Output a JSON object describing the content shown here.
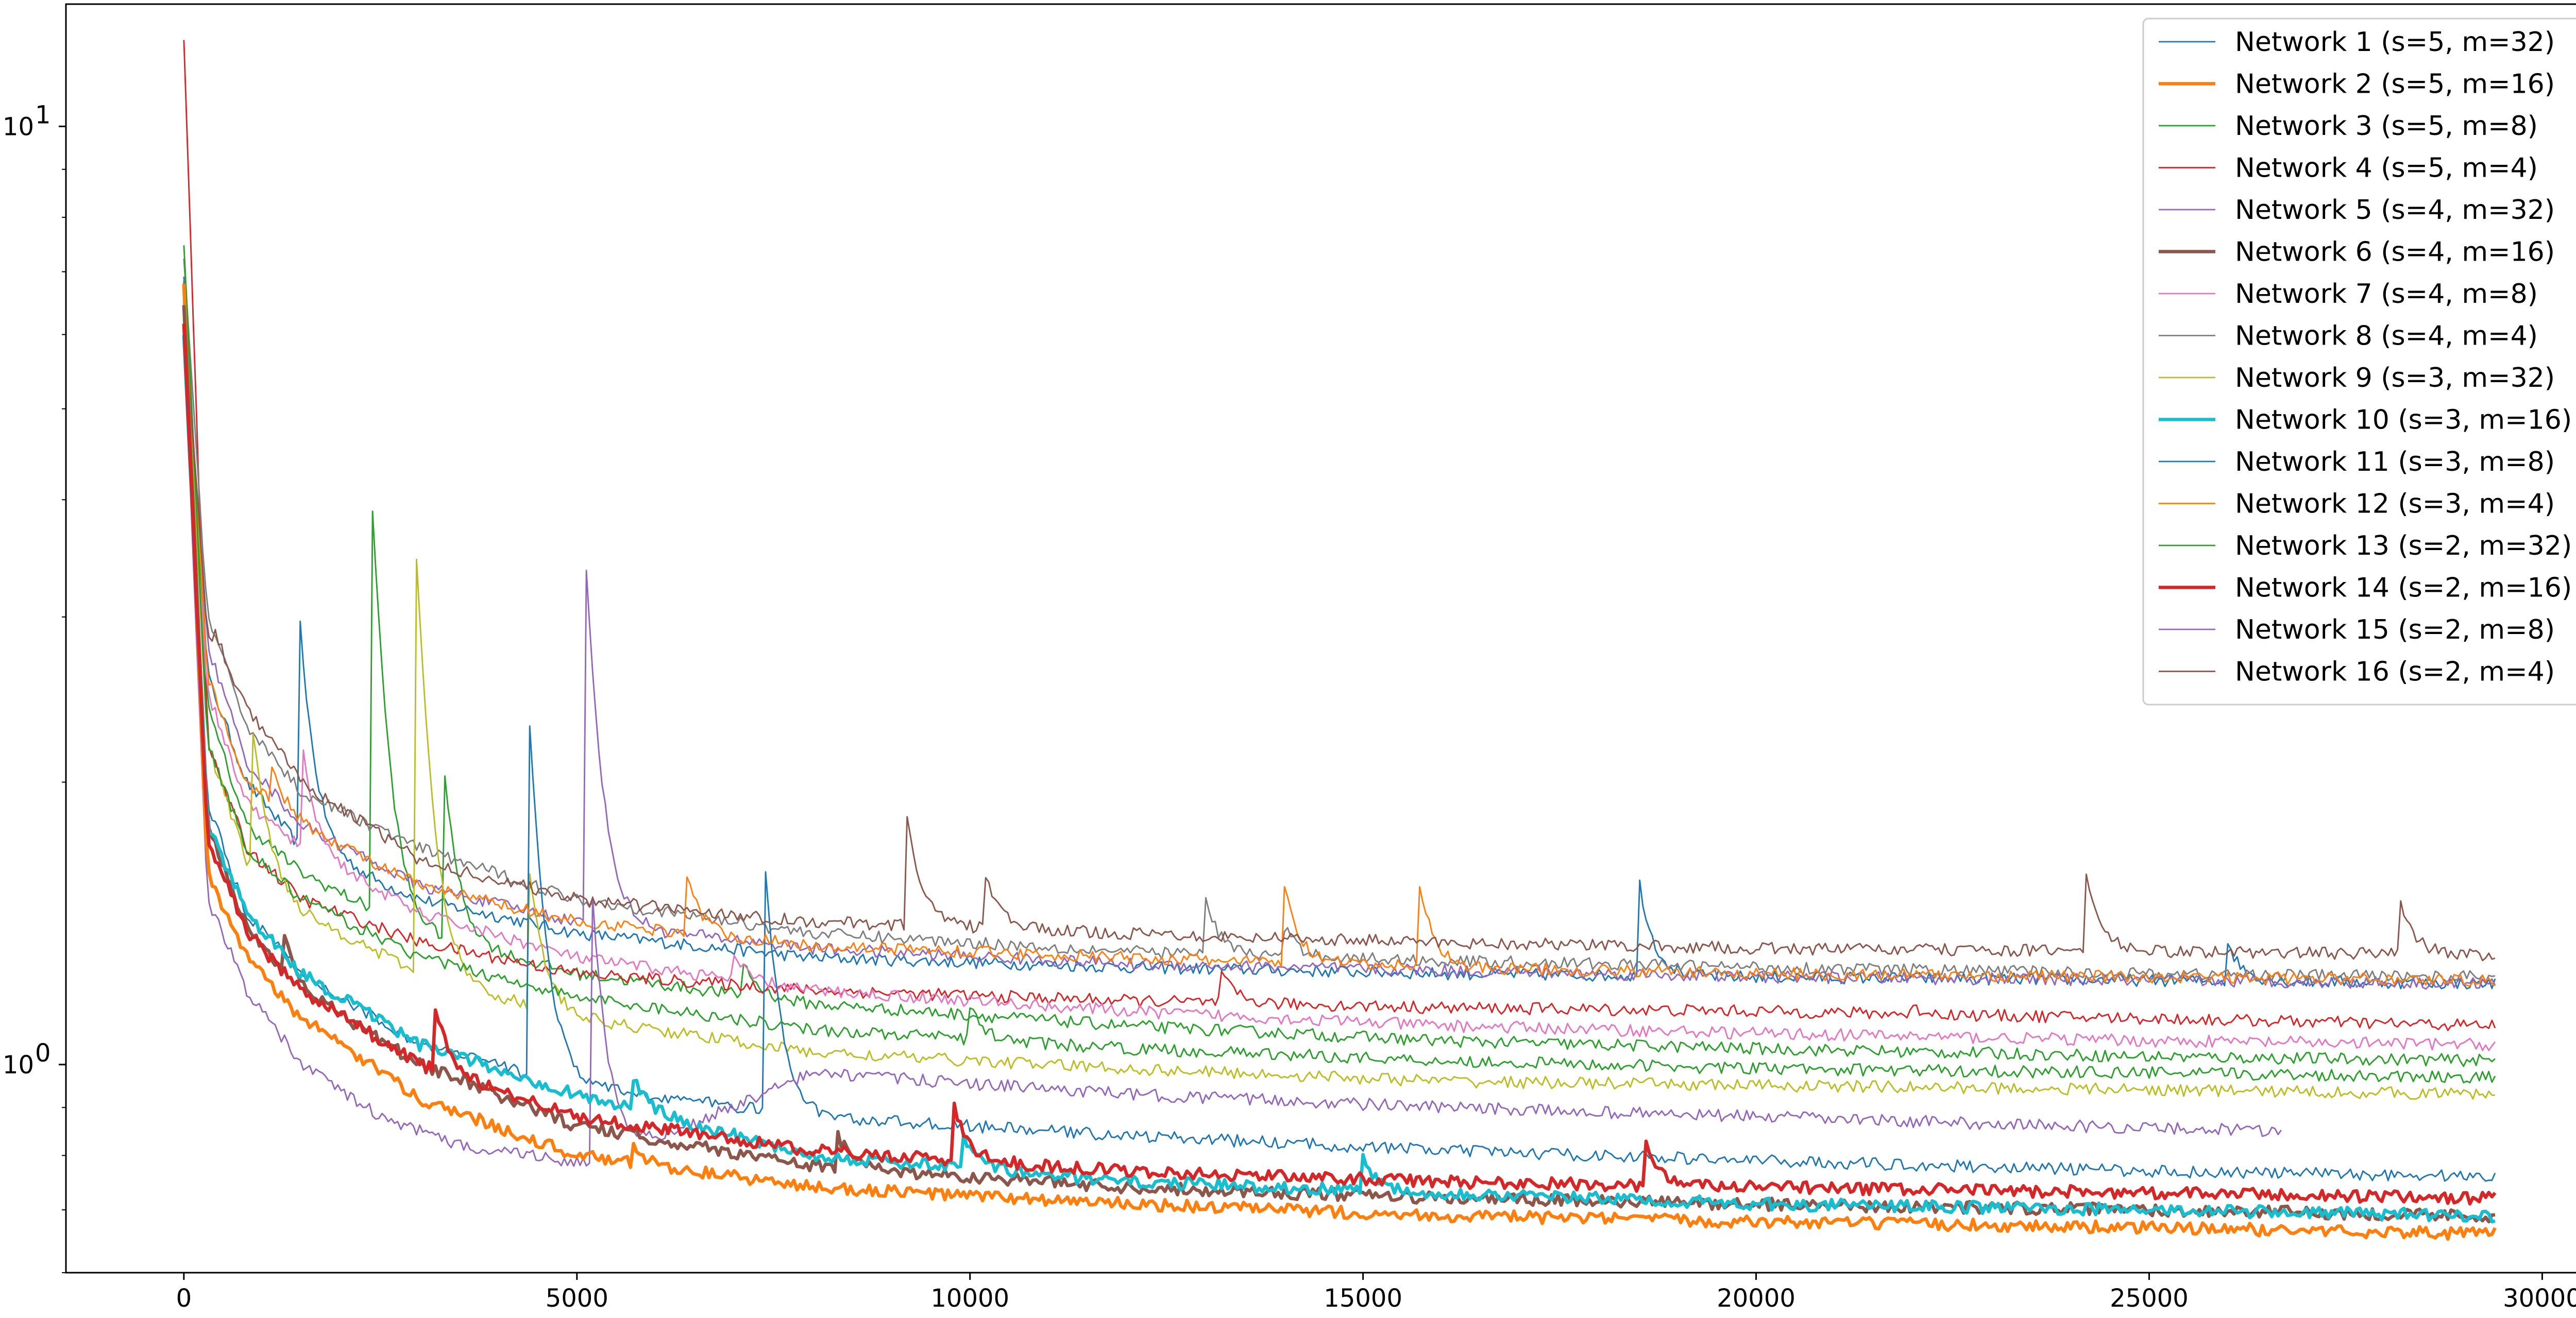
{
  "chart_data": {
    "type": "line",
    "title": "",
    "xlabel": "",
    "ylabel": "",
    "xlim": [
      -1500,
      31000
    ],
    "ylim": [
      0.6,
      13.5
    ],
    "yscale": "log",
    "grid": false,
    "legend_position": "top-right",
    "x_ticks": [
      0,
      5000,
      10000,
      15000,
      20000,
      25000,
      30000
    ],
    "y_ticks": [
      {
        "value": 1,
        "label": "10",
        "exponent": "0"
      },
      {
        "value": 10,
        "label": "10",
        "exponent": "1"
      }
    ],
    "series": [
      {
        "name": "Network 1 (s=5, m=32)",
        "color": "#1f77b4",
        "lw": 1.3,
        "start": 7.0,
        "spikes": [
          [
            1450,
            3.2
          ],
          [
            18500,
            1.6
          ],
          [
            26000,
            1.35
          ]
        ],
        "x": [
          0,
          300,
          800,
          1500,
          3000,
          5000,
          8000,
          12000,
          16000,
          20000,
          25000,
          29400
        ],
        "y": [
          7.0,
          2.6,
          2.0,
          1.7,
          1.5,
          1.38,
          1.3,
          1.27,
          1.25,
          1.24,
          1.23,
          1.22
        ]
      },
      {
        "name": "Network 2 (s=5, m=16)",
        "color": "#ff7f0e",
        "lw": 3.0,
        "start": 6.8,
        "spikes": [
          [
            5700,
            0.82
          ]
        ],
        "x": [
          0,
          300,
          800,
          1500,
          3000,
          5000,
          8000,
          12000,
          16000,
          20000,
          25000,
          29400
        ],
        "y": [
          6.8,
          1.6,
          1.3,
          1.12,
          0.92,
          0.8,
          0.74,
          0.71,
          0.69,
          0.68,
          0.67,
          0.66
        ]
      },
      {
        "name": "Network 3 (s=5, m=8)",
        "color": "#2ca02c",
        "lw": 1.3,
        "start": 6.8,
        "spikes": [
          [
            2400,
            3.9
          ],
          [
            3300,
            2.1
          ],
          [
            7100,
            1.3
          ]
        ],
        "x": [
          0,
          300,
          800,
          1500,
          3000,
          5000,
          8000,
          12000,
          16000,
          20000,
          25000,
          29400
        ],
        "y": [
          6.8,
          2.4,
          1.8,
          1.6,
          1.38,
          1.25,
          1.16,
          1.1,
          1.06,
          1.04,
          1.02,
          1.01
        ]
      },
      {
        "name": "Network 4 (s=5, m=4)",
        "color": "#d62728",
        "lw": 1.3,
        "start": 12.5,
        "spikes": [
          [
            13200,
            1.25
          ],
          [
            22000,
            1.15
          ]
        ],
        "x": [
          0,
          300,
          800,
          1500,
          3000,
          5000,
          8000,
          12000,
          16000,
          20000,
          25000,
          29400
        ],
        "y": [
          12.5,
          2.2,
          1.7,
          1.5,
          1.35,
          1.25,
          1.2,
          1.17,
          1.15,
          1.14,
          1.12,
          1.1
        ]
      },
      {
        "name": "Network 5 (s=4, m=32)",
        "color": "#9467bd",
        "lw": 1.3,
        "start": 6.5,
        "spikes": [
          [
            5100,
            3.6
          ],
          [
            11100,
            1.1
          ]
        ],
        "x": [
          0,
          300,
          800,
          1500,
          3000,
          5000,
          8000,
          12000,
          16000,
          20000,
          25000,
          29400
        ],
        "y": [
          6.5,
          2.8,
          2.1,
          1.8,
          1.55,
          1.42,
          1.33,
          1.28,
          1.26,
          1.24,
          1.23,
          1.22
        ]
      },
      {
        "name": "Network 6 (s=4, m=16)",
        "color": "#8c564b",
        "lw": 3.0,
        "start": 6.5,
        "spikes": [
          [
            1250,
            1.4
          ],
          [
            8300,
            0.85
          ]
        ],
        "x": [
          0,
          300,
          800,
          1500,
          3000,
          5000,
          8000,
          12000,
          16000,
          20000,
          25000,
          29400
        ],
        "y": [
          6.5,
          1.8,
          1.4,
          1.2,
          1.0,
          0.86,
          0.78,
          0.74,
          0.72,
          0.71,
          0.7,
          0.69
        ]
      },
      {
        "name": "Network 7 (s=4, m=8)",
        "color": "#e377c2",
        "lw": 1.3,
        "start": 6.0,
        "spikes": [
          [
            1500,
            2.2
          ],
          [
            7000,
            1.3
          ]
        ],
        "x": [
          0,
          300,
          800,
          1500,
          3000,
          5000,
          8000,
          12000,
          16000,
          20000,
          25000,
          29400
        ],
        "y": [
          6.0,
          2.5,
          1.9,
          1.7,
          1.45,
          1.3,
          1.2,
          1.14,
          1.1,
          1.08,
          1.06,
          1.05
        ]
      },
      {
        "name": "Network 8 (s=4, m=4)",
        "color": "#7f7f7f",
        "lw": 1.3,
        "start": 7.2,
        "spikes": [
          [
            13000,
            1.5
          ],
          [
            14000,
            1.4
          ]
        ],
        "x": [
          0,
          300,
          800,
          1500,
          3000,
          5000,
          8000,
          12000,
          16000,
          20000,
          25000,
          29400
        ],
        "y": [
          7.2,
          3.0,
          2.3,
          1.95,
          1.7,
          1.5,
          1.38,
          1.32,
          1.29,
          1.27,
          1.25,
          1.24
        ]
      },
      {
        "name": "Network 9 (s=3, m=32)",
        "color": "#bcbd22",
        "lw": 1.3,
        "start": 6.5,
        "spikes": [
          [
            850,
            2.4
          ],
          [
            2950,
            3.6
          ],
          [
            4400,
            1.6
          ]
        ],
        "x": [
          0,
          300,
          800,
          1500,
          3000,
          5000,
          8000,
          12000,
          16000,
          20000,
          25000,
          29400
        ],
        "y": [
          6.5,
          2.2,
          1.65,
          1.45,
          1.25,
          1.12,
          1.03,
          0.99,
          0.96,
          0.95,
          0.94,
          0.93
        ]
      },
      {
        "name": "Network 10 (s=3, m=16)",
        "color": "#17becf",
        "lw": 3.0,
        "start": 6.0,
        "spikes": [
          [
            5700,
            0.98
          ],
          [
            9900,
            0.85
          ],
          [
            15000,
            0.8
          ]
        ],
        "x": [
          0,
          300,
          800,
          1500,
          3000,
          5000,
          8000,
          12000,
          16000,
          20000,
          25000,
          29400
        ],
        "y": [
          6.0,
          1.8,
          1.45,
          1.25,
          1.05,
          0.93,
          0.8,
          0.75,
          0.73,
          0.71,
          0.7,
          0.69
        ]
      },
      {
        "name": "Network 11 (s=3, m=8)",
        "color": "#1f77b4",
        "lw": 1.3,
        "start": 6.8,
        "spikes": [
          [
            4400,
            2.3
          ],
          [
            7400,
            1.6
          ]
        ],
        "x": [
          0,
          300,
          800,
          1500,
          3000,
          5000,
          8000,
          12000,
          16000,
          20000,
          25000,
          29400
        ],
        "y": [
          6.8,
          1.9,
          1.45,
          1.25,
          1.05,
          0.95,
          0.88,
          0.84,
          0.81,
          0.79,
          0.77,
          0.76
        ]
      },
      {
        "name": "Network 12 (s=3, m=4)",
        "color": "#ff7f0e",
        "lw": 1.3,
        "start": 6.6,
        "spikes": [
          [
            1100,
            2.1
          ],
          [
            6400,
            1.6
          ],
          [
            14000,
            1.55
          ],
          [
            15700,
            1.6
          ]
        ],
        "x": [
          0,
          300,
          800,
          1500,
          3000,
          5000,
          8000,
          12000,
          16000,
          20000,
          25000,
          29400
        ],
        "y": [
          6.6,
          2.6,
          2.0,
          1.8,
          1.55,
          1.42,
          1.34,
          1.3,
          1.27,
          1.25,
          1.24,
          1.23
        ]
      },
      {
        "name": "Network 13 (s=2, m=32)",
        "color": "#2ca02c",
        "lw": 1.3,
        "start": 7.5,
        "spikes": [
          [
            2300,
            1.25
          ],
          [
            10000,
            1.15
          ]
        ],
        "x": [
          0,
          300,
          800,
          1500,
          3000,
          5000,
          8000,
          12000,
          16000,
          20000,
          25000,
          29400
        ],
        "y": [
          7.5,
          2.2,
          1.7,
          1.5,
          1.3,
          1.18,
          1.09,
          1.04,
          1.01,
          0.99,
          0.98,
          0.97
        ]
      },
      {
        "name": "Network 14 (s=2, m=16)",
        "color": "#d62728",
        "lw": 3.0,
        "start": 6.2,
        "spikes": [
          [
            3200,
            1.15
          ],
          [
            9800,
            0.9
          ],
          [
            18600,
            0.82
          ]
        ],
        "x": [
          0,
          300,
          800,
          1500,
          3000,
          5000,
          8000,
          12000,
          16000,
          20000,
          25000,
          29400
        ],
        "y": [
          6.2,
          1.75,
          1.38,
          1.2,
          1.0,
          0.88,
          0.81,
          0.77,
          0.75,
          0.74,
          0.73,
          0.72
        ]
      },
      {
        "name": "Network 15 (s=2, m=8)",
        "color": "#9467bd",
        "lw": 1.3,
        "start": 6.0,
        "spikes": [
          [
            5200,
            1.5
          ]
        ],
        "x": [
          0,
          300,
          800,
          1500,
          2500,
          3500,
          4500,
          5200,
          8000,
          12000,
          16000,
          20000,
          24000,
          26700
        ],
        "y": [
          6.0,
          1.5,
          1.2,
          1.0,
          0.88,
          0.82,
          0.8,
          0.78,
          0.98,
          0.93,
          0.9,
          0.88,
          0.86,
          0.85
        ]
      },
      {
        "name": "Network 16 (s=2, m=4)",
        "color": "#8c564b",
        "lw": 1.3,
        "start": 6.2,
        "spikes": [
          [
            400,
            2.9
          ],
          [
            9200,
            1.85
          ],
          [
            10200,
            1.6
          ],
          [
            24200,
            1.6
          ],
          [
            28200,
            1.5
          ]
        ],
        "x": [
          0,
          300,
          800,
          1500,
          3000,
          5000,
          8000,
          12000,
          16000,
          20000,
          25000,
          29400
        ],
        "y": [
          6.2,
          2.9,
          2.4,
          2.0,
          1.65,
          1.5,
          1.42,
          1.38,
          1.35,
          1.33,
          1.32,
          1.31
        ]
      }
    ]
  }
}
